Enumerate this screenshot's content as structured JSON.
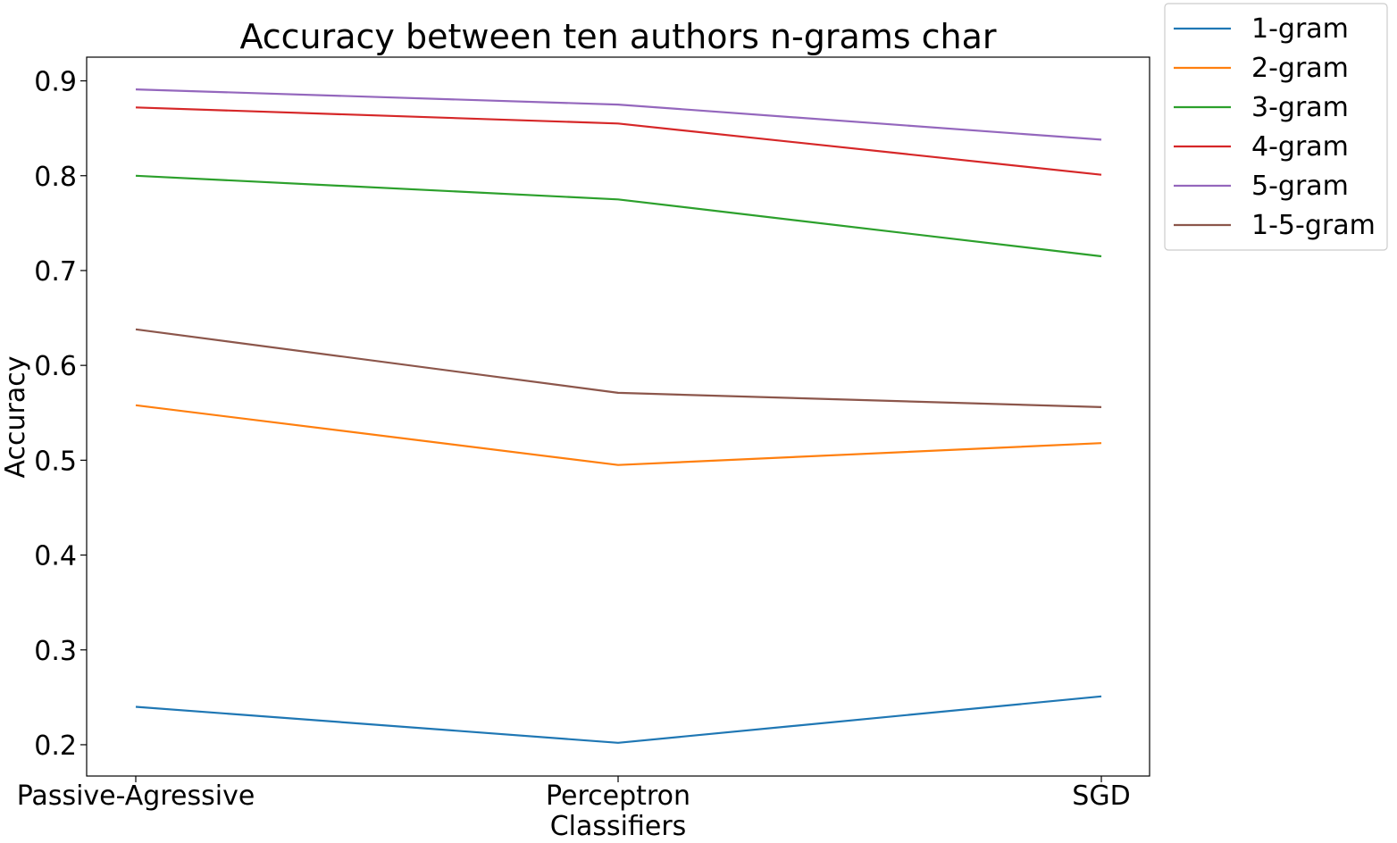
{
  "chart_data": {
    "type": "line",
    "title": "Accuracy between ten authors n-grams char",
    "xlabel": "Classifiers",
    "ylabel": "Accuracy",
    "categories": [
      "Passive-Agressive",
      "Perceptron",
      "SGD"
    ],
    "ylim": [
      0.167,
      0.925
    ],
    "yticks": [
      0.2,
      0.3,
      0.4,
      0.5,
      0.6,
      0.7,
      0.8,
      0.9
    ],
    "ytick_labels": [
      "0.2",
      "0.3",
      "0.4",
      "0.5",
      "0.6",
      "0.7",
      "0.8",
      "0.9"
    ],
    "grid": false,
    "legend_position": "outside-top-right",
    "series": [
      {
        "name": "1-gram",
        "color": "#1f77b4",
        "values": [
          0.24,
          0.202,
          0.251
        ]
      },
      {
        "name": "2-gram",
        "color": "#ff7f0e",
        "values": [
          0.558,
          0.495,
          0.518
        ]
      },
      {
        "name": "3-gram",
        "color": "#2ca02c",
        "values": [
          0.8,
          0.775,
          0.715
        ]
      },
      {
        "name": "4-gram",
        "color": "#d62728",
        "values": [
          0.872,
          0.855,
          0.801
        ]
      },
      {
        "name": "5-gram",
        "color": "#9467bd",
        "values": [
          0.891,
          0.875,
          0.838
        ]
      },
      {
        "name": "1-5-gram",
        "color": "#8c564b",
        "values": [
          0.638,
          0.571,
          0.556
        ]
      }
    ]
  }
}
